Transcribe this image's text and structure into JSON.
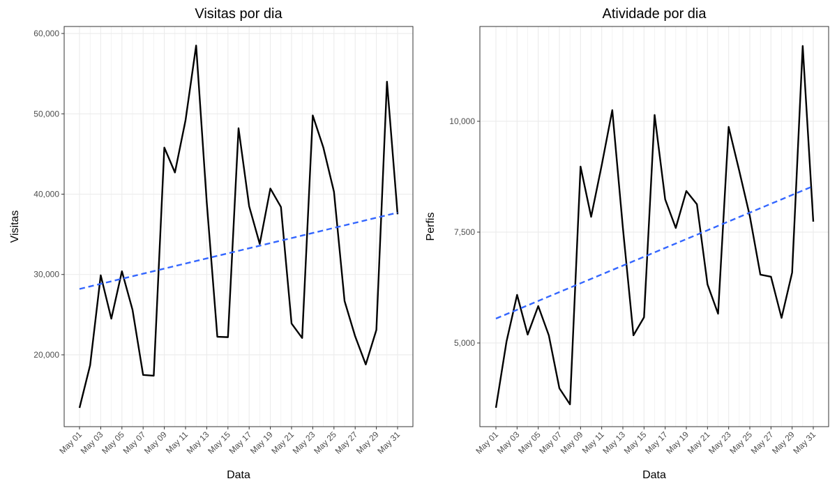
{
  "chart_data": [
    {
      "type": "line",
      "title": "Visitas por dia",
      "x_label": "Data",
      "y_label": "Visitas",
      "categories": [
        "May 01",
        null,
        "May 03",
        null,
        "May 05",
        null,
        "May 07",
        null,
        "May 09",
        null,
        "May 11",
        null,
        "May 13",
        null,
        "May 15",
        null,
        "May 17",
        null,
        "May 19",
        null,
        "May 21",
        null,
        "May 23",
        null,
        "May 25",
        null,
        "May 27",
        null,
        "May 29",
        null,
        "May 31"
      ],
      "series": [
        {
          "color": "#000000",
          "values": [
            13400,
            18700,
            29900,
            24500,
            30400,
            25600,
            17500,
            17400,
            45800,
            42700,
            49200,
            58500,
            39000,
            22250,
            22200,
            48200,
            38500,
            33800,
            40700,
            38400,
            23900,
            22100,
            49800,
            45800,
            40300,
            26700,
            22300,
            18800,
            23100,
            54000,
            37500
          ]
        },
        {
          "color": "#3366ff",
          "dashed": true,
          "values": [
            28200,
            28517,
            28833,
            29150,
            29467,
            29783,
            30100,
            30417,
            30733,
            31050,
            31367,
            31683,
            32000,
            32317,
            32633,
            32950,
            33267,
            33583,
            33900,
            34217,
            34533,
            34850,
            35167,
            35483,
            35800,
            36117,
            36433,
            36750,
            37067,
            37383,
            37700
          ]
        }
      ],
      "ylim": [
        11060,
        60870
      ],
      "yticks": [
        {
          "value": 20000,
          "label": "20,000"
        },
        {
          "value": 30000,
          "label": "30,000"
        },
        {
          "value": 40000,
          "label": "40,000"
        },
        {
          "value": 50000,
          "label": "50,000"
        },
        {
          "value": 60000,
          "label": "60,000"
        }
      ],
      "grid": true
    },
    {
      "type": "line",
      "title": "Atividade por dia",
      "x_label": "Data",
      "y_label": "Perfis",
      "categories": [
        "May 01",
        null,
        "May 03",
        null,
        "May 05",
        null,
        "May 07",
        null,
        "May 09",
        null,
        "May 11",
        null,
        "May 13",
        null,
        "May 15",
        null,
        "May 17",
        null,
        "May 19",
        null,
        "May 21",
        null,
        "May 23",
        null,
        "May 25",
        null,
        "May 27",
        null,
        "May 29",
        null,
        "May 31"
      ],
      "series": [
        {
          "color": "#000000",
          "values": [
            3538,
            5031,
            6085,
            5189,
            5833,
            5173,
            3978,
            3616,
            8978,
            7846,
            9010,
            10252,
            7600,
            5173,
            5580,
            10142,
            8239,
            7594,
            8428,
            8129,
            6321,
            5660,
            9874,
            8884,
            7862,
            6541,
            6494,
            5566,
            6588,
            11698,
            7736
          ]
        },
        {
          "color": "#3366ff",
          "dashed": true,
          "values": [
            5550,
            5650,
            5749,
            5849,
            5948,
            6048,
            6148,
            6247,
            6347,
            6446,
            6546,
            6646,
            6745,
            6845,
            6944,
            7044,
            7144,
            7243,
            7343,
            7442,
            7542,
            7642,
            7741,
            7841,
            7940,
            8040,
            8140,
            8239,
            8339,
            8438,
            8538
          ]
        }
      ],
      "ylim": [
        3113,
        12138
      ],
      "yticks": [
        {
          "value": 5000,
          "label": "5,000"
        },
        {
          "value": 7500,
          "label": "7,500"
        },
        {
          "value": 10000,
          "label": "10,000"
        }
      ],
      "grid": true
    }
  ]
}
